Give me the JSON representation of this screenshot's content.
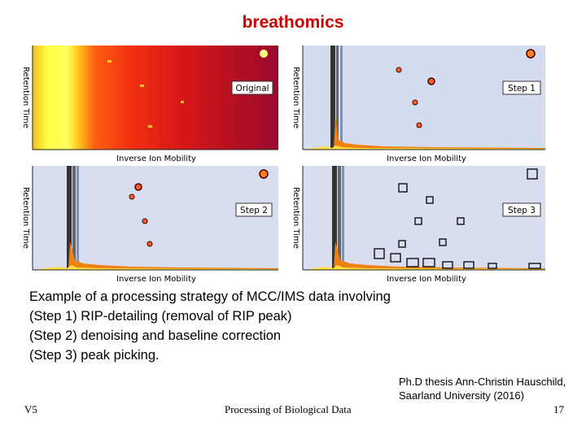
{
  "title": "breathomics",
  "figure": {
    "y_axis_label": "Retention Time",
    "x_axis_label": "Inverse Ion Mobility",
    "panels": [
      {
        "label": "Original"
      },
      {
        "label": "Step 1"
      },
      {
        "label": "Step 2"
      },
      {
        "label": "Step 3"
      }
    ]
  },
  "caption": {
    "lines": [
      "Example of a processing strategy of MCC/IMS data involving",
      "(Step 1) RIP-detailing (removal of RIP peak)",
      "(Step 2) denoising and baseline correction",
      "(Step 3) peak picking."
    ]
  },
  "citation": {
    "line1": "Ph.D thesis Ann-Christin Hauschild,",
    "line2": "Saarland University (2016)"
  },
  "footer": {
    "left": "V5",
    "center": "Processing of Biological Data",
    "right": "17"
  }
}
